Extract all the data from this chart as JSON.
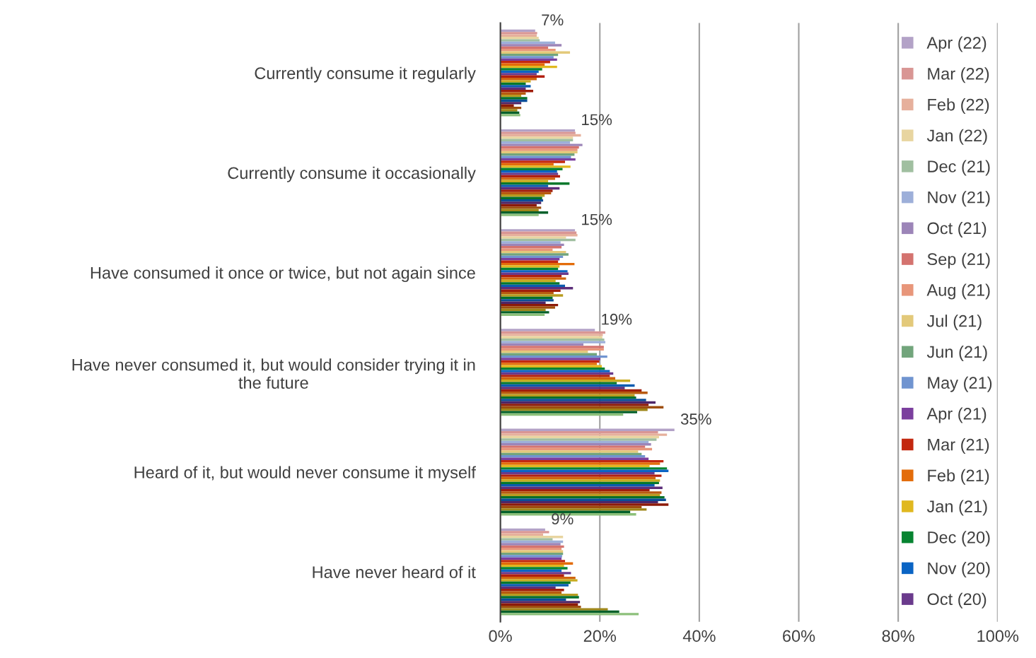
{
  "chart_data": {
    "type": "bar",
    "orientation": "horizontal",
    "categories": [
      "Currently consume it regularly",
      "Currently consume it occasionally",
      "Have consumed it once or twice, but not again since",
      "Have never consumed it, but would consider trying it in\nthe future",
      "Heard of it, but would never consume it myself",
      "Have never heard of it"
    ],
    "series": [
      {
        "name": "Apr (22)",
        "color": "#b3a2c7",
        "values": [
          7,
          15,
          15,
          19,
          35,
          9
        ],
        "value_labels": [
          "7%",
          "15%",
          "15%",
          "19%",
          "35%",
          "9%"
        ]
      },
      {
        "name": "Mar (22)",
        "color": "#d99694",
        "values": [
          7.4,
          15.1,
          15.3,
          21.1,
          31.7,
          9.8
        ]
      },
      {
        "name": "Feb (22)",
        "color": "#e6b09c",
        "values": [
          7.3,
          16.2,
          15.5,
          20.6,
          33.5,
          8.6
        ]
      },
      {
        "name": "Jan (22)",
        "color": "#e8d5a0",
        "values": [
          7.7,
          14.6,
          13.2,
          20.5,
          31.9,
          12.6
        ]
      },
      {
        "name": "Dec (21)",
        "color": "#a0bfa0",
        "values": [
          7.9,
          14.6,
          15.1,
          20.9,
          31.4,
          10.5
        ]
      },
      {
        "name": "Nov (21)",
        "color": "#9dafd9",
        "values": [
          11.0,
          14.0,
          12.1,
          21.1,
          29.8,
          12.6
        ]
      },
      {
        "name": "Oct (21)",
        "color": "#9c85b8",
        "values": [
          12.3,
          16.5,
          12.8,
          16.7,
          30.3,
          12.1
        ]
      },
      {
        "name": "Sep (21)",
        "color": "#d4736f",
        "values": [
          9.6,
          15.8,
          12.3,
          20.8,
          29.1,
          12.8
        ]
      },
      {
        "name": "Aug (21)",
        "color": "#e8967a",
        "values": [
          11.1,
          15.5,
          10.5,
          20.8,
          30.5,
          12.3
        ]
      },
      {
        "name": "Jul (21)",
        "color": "#e3c97a",
        "values": [
          14.0,
          15.5,
          13.2,
          17.6,
          27.7,
          12.6
        ]
      },
      {
        "name": "Jun (21)",
        "color": "#72a57c",
        "values": [
          11.6,
          14.9,
          13.7,
          19.4,
          28.4,
          12.6
        ]
      },
      {
        "name": "May (21)",
        "color": "#7094d0",
        "values": [
          10.7,
          14.2,
          12.6,
          21.5,
          29.1,
          12.4
        ]
      },
      {
        "name": "Apr (21)",
        "color": "#7b3f9e",
        "values": [
          11.4,
          15.1,
          11.9,
          20.1,
          29.8,
          12.3
        ]
      },
      {
        "name": "Mar (21)",
        "color": "#c3280f",
        "values": [
          10.0,
          13.0,
          11.6,
          19.9,
          32.8,
          13.0
        ]
      },
      {
        "name": "Feb (21)",
        "color": "#e36c0a",
        "values": [
          8.9,
          10.7,
          14.9,
          19.4,
          32.1,
          14.6
        ]
      },
      {
        "name": "Jan (21)",
        "color": "#e0b81f",
        "values": [
          11.4,
          14.1,
          11.9,
          20.4,
          30.0,
          12.8
        ]
      },
      {
        "name": "Dec (20)",
        "color": "#078431",
        "values": [
          8.4,
          12.5,
          11.6,
          21.0,
          33.5,
          13.5
        ]
      },
      {
        "name": "Nov (20)",
        "color": "#0a64c4",
        "values": [
          7.7,
          11.4,
          13.5,
          22.0,
          33.8,
          12.3
        ]
      },
      {
        "name": "Oct (20)",
        "color": "#6a3a8c",
        "values": [
          7.3,
          11.6,
          13.7,
          22.7,
          31.0,
          14.2
        ]
      },
      {
        "color": "#b22010",
        "values": [
          8.9,
          12.0,
          12.3,
          22.0,
          32.4,
          12.8
        ]
      },
      {
        "color": "#d0650e",
        "values": [
          7.3,
          11.0,
          13.2,
          23.1,
          31.2,
          15.1
        ]
      },
      {
        "color": "#c9ac20",
        "values": [
          6.1,
          9.6,
          11.1,
          26.1,
          32.1,
          15.5
        ]
      },
      {
        "color": "#06782c",
        "values": [
          5.1,
          13.9,
          11.9,
          23.4,
          31.9,
          14.1
        ]
      },
      {
        "color": "#0b5cb0",
        "values": [
          6.1,
          9.6,
          13.0,
          27.0,
          31.0,
          13.7
        ]
      },
      {
        "color": "#5c2e7a",
        "values": [
          5.1,
          11.9,
          14.6,
          25.0,
          32.6,
          11.1
        ]
      },
      {
        "color": "#a01e0c",
        "values": [
          6.6,
          10.5,
          12.1,
          28.4,
          30.0,
          12.8
        ]
      },
      {
        "color": "#b85a10",
        "values": [
          5.1,
          10.2,
          10.7,
          29.6,
          32.4,
          12.3
        ]
      },
      {
        "color": "#b89c20",
        "values": [
          4.2,
          8.9,
          12.6,
          27.0,
          32.1,
          15.6
        ]
      },
      {
        "color": "#05702a",
        "values": [
          5.4,
          8.4,
          10.5,
          27.3,
          33.0,
          15.8
        ]
      },
      {
        "color": "#0a4e98",
        "values": [
          5.4,
          8.6,
          10.7,
          29.3,
          33.3,
          13.2
        ]
      },
      {
        "color": "#4e2668",
        "values": [
          4.2,
          8.2,
          9.1,
          31.2,
          31.7,
          16.0
        ]
      },
      {
        "color": "#8c1a0a",
        "values": [
          2.7,
          7.3,
          11.6,
          29.8,
          33.8,
          15.6
        ]
      },
      {
        "color": "#9e4e0e",
        "values": [
          4.2,
          8.2,
          11.0,
          32.8,
          28.4,
          16.2
        ]
      },
      {
        "color": "#9e8618",
        "values": [
          3.4,
          7.7,
          9.1,
          29.6,
          29.4,
          21.6
        ]
      },
      {
        "color": "#04602a",
        "values": [
          3.8,
          9.6,
          9.8,
          27.5,
          26.1,
          23.9
        ]
      },
      {
        "color": "#8cc07a",
        "values": [
          4.0,
          7.7,
          8.9,
          24.7,
          27.3,
          27.8
        ]
      }
    ],
    "xlim": [
      0,
      100
    ],
    "xticks": [
      {
        "value": 0,
        "label": "0%"
      },
      {
        "value": 20,
        "label": "20%"
      },
      {
        "value": 40,
        "label": "40%"
      },
      {
        "value": 60,
        "label": "60%"
      },
      {
        "value": 80,
        "label": "80%"
      },
      {
        "value": 100,
        "label": "100%"
      }
    ],
    "grid": "x",
    "legend": "right"
  }
}
